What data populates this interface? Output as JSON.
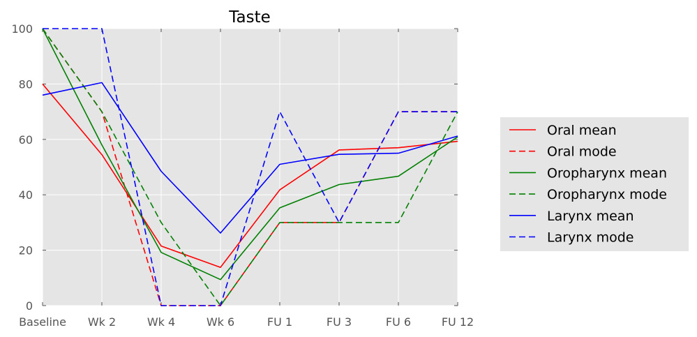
{
  "chart_data": {
    "type": "line",
    "title": "Taste",
    "xlabel": "",
    "ylabel": "",
    "categories": [
      "Baseline",
      "Wk 2",
      "Wk 4",
      "Wk 6",
      "FU 1",
      "FU 3",
      "FU 6",
      "FU 12"
    ],
    "ylim": [
      0,
      100
    ],
    "yticks": [
      0,
      20,
      40,
      60,
      80,
      100
    ],
    "grid": true,
    "legend_position": "right",
    "series": [
      {
        "name": "Oral mean",
        "color": "#ff0000",
        "dash": "solid",
        "values": [
          80,
          54.5,
          21.5,
          13.8,
          41.8,
          56.2,
          57,
          59.3
        ]
      },
      {
        "name": "Oral mode",
        "color": "#ff0000",
        "dash": "dashed",
        "values": [
          100,
          70,
          0,
          0,
          30,
          30,
          70,
          70
        ]
      },
      {
        "name": "Oropharynx mean",
        "color": "#008000",
        "dash": "solid",
        "values": [
          100,
          58,
          19.2,
          9.4,
          35.3,
          43.7,
          46.7,
          60.9
        ]
      },
      {
        "name": "Oropharynx mode",
        "color": "#008000",
        "dash": "dashed",
        "values": [
          100,
          70,
          30,
          0,
          30,
          30,
          30,
          70
        ]
      },
      {
        "name": "Larynx mean",
        "color": "#0000ff",
        "dash": "solid",
        "values": [
          76,
          80.5,
          48.5,
          26.2,
          51,
          54.6,
          55,
          61.2
        ]
      },
      {
        "name": "Larynx mode",
        "color": "#0000ff",
        "dash": "dashed",
        "values": [
          100,
          100,
          0,
          0,
          70,
          30,
          70,
          70
        ]
      }
    ]
  }
}
